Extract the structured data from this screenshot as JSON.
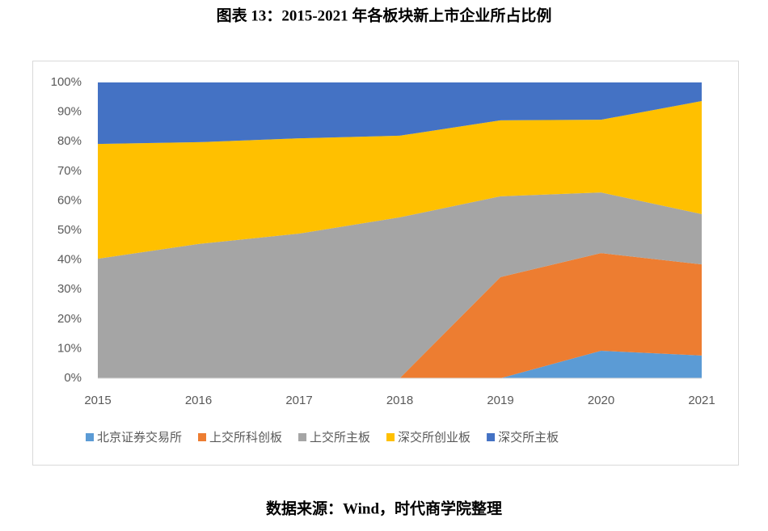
{
  "chart_data": {
    "type": "stacked-area",
    "title": "图表 13：2015-2021 年各板块新上市企业所占比例",
    "source": "数据来源：Wind，时代商学院整理",
    "categories": [
      "2015",
      "2016",
      "2017",
      "2018",
      "2019",
      "2020",
      "2021"
    ],
    "series": [
      {
        "name": "北京证券交易所",
        "color": "#5b9bd5",
        "values": [
          0,
          0,
          0,
          0,
          0,
          9.3,
          7.7
        ]
      },
      {
        "name": "上交所科创板",
        "color": "#ed7d31",
        "values": [
          0,
          0,
          0,
          0,
          34.2,
          33.0,
          30.8
        ]
      },
      {
        "name": "上交所主板",
        "color": "#a5a5a5",
        "values": [
          40.4,
          45.4,
          48.9,
          54.4,
          27.3,
          20.5,
          17.0
        ]
      },
      {
        "name": "深交所创业板",
        "color": "#ffc000",
        "values": [
          38.8,
          34.4,
          32.2,
          27.6,
          25.7,
          24.6,
          38.2
        ]
      },
      {
        "name": "深交所主板",
        "color": "#4472c4",
        "values": [
          20.8,
          20.2,
          18.9,
          18.0,
          12.8,
          12.6,
          6.3
        ]
      }
    ],
    "ylim": [
      0,
      100
    ],
    "yticks": [
      {
        "value": 0,
        "label": "0%"
      },
      {
        "value": 10,
        "label": "10%"
      },
      {
        "value": 20,
        "label": "20%"
      },
      {
        "value": 30,
        "label": "30%"
      },
      {
        "value": 40,
        "label": "40%"
      },
      {
        "value": 50,
        "label": "50%"
      },
      {
        "value": 60,
        "label": "60%"
      },
      {
        "value": 70,
        "label": "70%"
      },
      {
        "value": 80,
        "label": "80%"
      },
      {
        "value": 90,
        "label": "90%"
      },
      {
        "value": 100,
        "label": "100%"
      }
    ],
    "legend": "bottom"
  }
}
